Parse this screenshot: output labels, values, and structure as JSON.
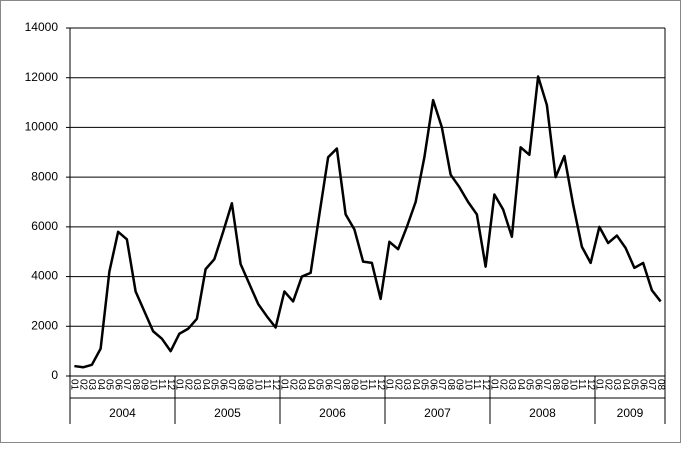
{
  "chart_data": {
    "type": "line",
    "categories": [
      "01",
      "02",
      "03",
      "04",
      "05",
      "06",
      "07",
      "08",
      "09",
      "10",
      "11",
      "12",
      "01",
      "02",
      "03",
      "04",
      "05",
      "06",
      "07",
      "08",
      "09",
      "10",
      "11",
      "12",
      "01",
      "02",
      "03",
      "04",
      "05",
      "06",
      "07",
      "08",
      "09",
      "10",
      "11",
      "12",
      "01",
      "02",
      "03",
      "04",
      "05",
      "06",
      "07",
      "08",
      "09",
      "10",
      "11",
      "12",
      "01",
      "02",
      "03",
      "04",
      "05",
      "06",
      "07",
      "08",
      "09",
      "10",
      "11",
      "12",
      "01",
      "02",
      "03",
      "04",
      "05",
      "06",
      "07",
      "08"
    ],
    "groups": [
      "2004",
      "2005",
      "2006",
      "2007",
      "2008",
      "2009"
    ],
    "series": [
      {
        "color": "#000000",
        "values": [
          400,
          350,
          450,
          1100,
          4200,
          5800,
          5500,
          3400,
          2600,
          1800,
          1500,
          1000,
          1700,
          1900,
          2300,
          4300,
          4700,
          5800,
          6950,
          4500,
          3700,
          2900,
          2400,
          1950,
          3400,
          3000,
          4000,
          4150,
          6500,
          8800,
          9150,
          6500,
          5900,
          4600,
          4550,
          3100,
          5400,
          5100,
          6000,
          7000,
          8800,
          11100,
          10000,
          8100,
          7600,
          7000,
          6500,
          4400,
          7300,
          6700,
          5600,
          9200,
          8900,
          12050,
          10900,
          8000,
          8850,
          6900,
          5200,
          4550,
          6000,
          5350,
          5650,
          5150,
          4350,
          4550,
          3450,
          3000
        ]
      }
    ],
    "ylim": [
      0,
      14000
    ],
    "yticks": [
      0,
      2000,
      4000,
      6000,
      8000,
      10000,
      12000,
      14000
    ],
    "grid": true
  }
}
